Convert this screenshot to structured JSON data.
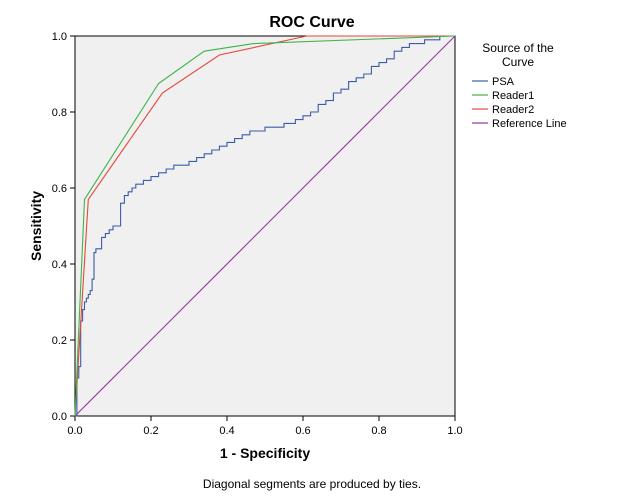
{
  "chart_data": {
    "type": "line",
    "title": "ROC Curve",
    "xlabel": "1 - Specificity",
    "ylabel": "Sensitivity",
    "xlim": [
      0,
      1
    ],
    "ylim": [
      0,
      1
    ],
    "xticks": [
      "0.0",
      "0.2",
      "0.4",
      "0.6",
      "0.8",
      "1.0"
    ],
    "yticks": [
      "0.0",
      "0.2",
      "0.4",
      "0.6",
      "0.8",
      "1.0"
    ],
    "xtick_values": [
      0,
      0.2,
      0.4,
      0.6,
      0.8,
      1.0
    ],
    "ytick_values": [
      0,
      0.2,
      0.4,
      0.6,
      0.8,
      1.0
    ],
    "grid": false,
    "plot_background": "#f0f0f0",
    "legend": {
      "title_line1": "Source of the",
      "title_line2": "Curve",
      "placement": "right"
    },
    "footnote": "Diagonal segments are produced by ties.",
    "series": [
      {
        "name": "PSA",
        "color": "#3c5ca8",
        "step": true,
        "x": [
          0,
          0.005,
          0.01,
          0.015,
          0.02,
          0.025,
          0.03,
          0.035,
          0.04,
          0.045,
          0.05,
          0.055,
          0.06,
          0.07,
          0.08,
          0.09,
          0.1,
          0.11,
          0.12,
          0.13,
          0.14,
          0.15,
          0.16,
          0.18,
          0.2,
          0.22,
          0.24,
          0.26,
          0.28,
          0.3,
          0.32,
          0.34,
          0.36,
          0.38,
          0.4,
          0.42,
          0.44,
          0.46,
          0.48,
          0.5,
          0.52,
          0.55,
          0.58,
          0.6,
          0.62,
          0.64,
          0.66,
          0.68,
          0.7,
          0.72,
          0.74,
          0.76,
          0.78,
          0.8,
          0.82,
          0.84,
          0.86,
          0.88,
          0.9,
          0.92,
          0.94,
          0.96,
          0.98,
          1.0
        ],
        "y": [
          0,
          0.1,
          0.13,
          0.25,
          0.28,
          0.3,
          0.31,
          0.32,
          0.33,
          0.36,
          0.43,
          0.44,
          0.44,
          0.47,
          0.48,
          0.49,
          0.5,
          0.5,
          0.56,
          0.58,
          0.59,
          0.6,
          0.61,
          0.62,
          0.63,
          0.64,
          0.65,
          0.66,
          0.66,
          0.67,
          0.68,
          0.69,
          0.7,
          0.71,
          0.72,
          0.73,
          0.74,
          0.75,
          0.75,
          0.76,
          0.76,
          0.77,
          0.78,
          0.79,
          0.8,
          0.82,
          0.83,
          0.85,
          0.86,
          0.88,
          0.89,
          0.9,
          0.92,
          0.93,
          0.94,
          0.96,
          0.97,
          0.98,
          0.98,
          0.99,
          0.99,
          1.0,
          1.0,
          1.0
        ]
      },
      {
        "name": "Reader1",
        "color": "#3cb44b",
        "step": false,
        "x": [
          0,
          0.025,
          0.22,
          0.34,
          0.47,
          1.0
        ],
        "y": [
          0,
          0.57,
          0.875,
          0.96,
          0.98,
          1.0
        ]
      },
      {
        "name": "Reader2",
        "color": "#e8453c",
        "step": false,
        "x": [
          0,
          0.035,
          0.23,
          0.38,
          0.61,
          1.0
        ],
        "y": [
          0,
          0.57,
          0.85,
          0.95,
          1.0,
          1.0
        ]
      },
      {
        "name": "Reference Line",
        "color": "#9b30a8",
        "step": false,
        "x": [
          0,
          1
        ],
        "y": [
          0,
          1
        ]
      }
    ]
  }
}
